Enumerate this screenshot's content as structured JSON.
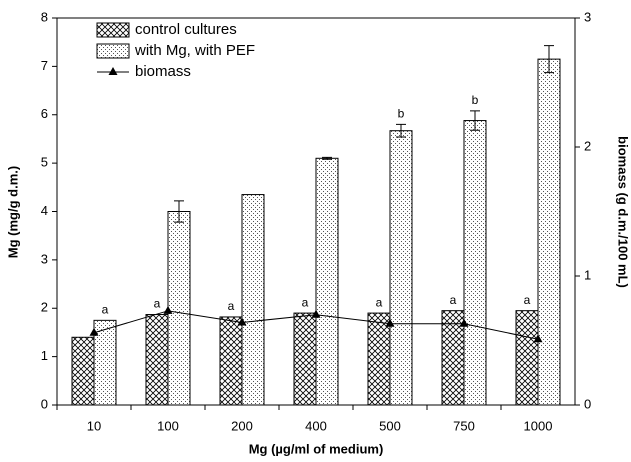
{
  "chart_data": {
    "type": "bar",
    "x_label": "Mg (µg/ml of medium)",
    "y_label": "Mg (mg/g d.m.)",
    "y2_label": "biomass (g d.m./100 mL)",
    "categories": [
      "10",
      "100",
      "200",
      "400",
      "500",
      "750",
      "1000"
    ],
    "series": [
      {
        "name": "control cultures",
        "type": "bar",
        "pattern": "crosshatch",
        "values": [
          1.4,
          1.87,
          1.82,
          1.9,
          1.9,
          1.95,
          1.95
        ],
        "errors": [
          null,
          null,
          null,
          null,
          null,
          null,
          null
        ],
        "letters": [
          null,
          "a",
          "a",
          "a",
          "a",
          "a",
          "a"
        ]
      },
      {
        "name": "with Mg, with PEF",
        "type": "bar",
        "pattern": "dots",
        "values": [
          1.75,
          4.0,
          4.35,
          5.1,
          5.67,
          5.88,
          7.15
        ],
        "errors": [
          null,
          0.22,
          null,
          0.02,
          0.13,
          0.2,
          0.28
        ],
        "letters": [
          "a",
          null,
          null,
          null,
          "b",
          "b",
          null
        ]
      },
      {
        "name": "biomass",
        "type": "line",
        "axis": "y2",
        "color": "#000000",
        "values": [
          0.56,
          0.73,
          0.64,
          0.7,
          0.63,
          0.63,
          0.51
        ]
      }
    ],
    "ylim": [
      0,
      8
    ],
    "yticks": [
      0,
      1,
      2,
      3,
      4,
      5,
      6,
      7,
      8
    ],
    "y2lim": [
      0,
      3
    ],
    "y2ticks": [
      0,
      1,
      2,
      3
    ],
    "legend": "top-left",
    "grid": false
  }
}
